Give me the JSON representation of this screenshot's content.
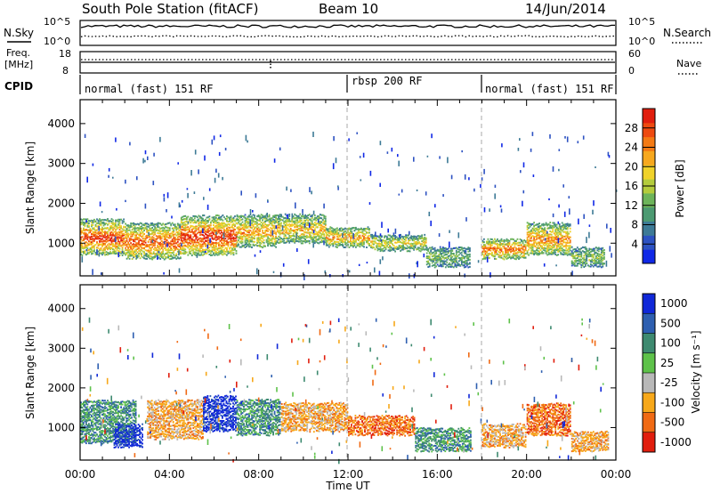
{
  "header": {
    "station": "South Pole Station (fitACF)",
    "beam": "Beam 10",
    "date": "14/Jun/2014"
  },
  "noise_panel": {
    "left_label": "N.Sky",
    "right_label": "N.Search",
    "left_ticks": [
      "10^5",
      "10^0"
    ],
    "right_ticks": [
      "10^5",
      "10^0"
    ]
  },
  "freq_panel": {
    "left_label_1": "Freq.",
    "left_label_2": "[MHz]",
    "right_label": "Nave",
    "left_ticks": [
      "18",
      "8"
    ],
    "right_ticks": [
      "60",
      "0"
    ]
  },
  "cpid": {
    "label": "CPID",
    "segments": [
      {
        "start": 0,
        "end": 12,
        "text": "normal (fast) 151 RF"
      },
      {
        "start": 12,
        "end": 18,
        "text": "rbsp 200 RF"
      },
      {
        "start": 18,
        "end": 24,
        "text": "normal (fast) 151 RF"
      }
    ]
  },
  "chart_data": [
    {
      "type": "heatmap",
      "name": "power",
      "ylabel": "Slant Range [km]",
      "xlim": [
        0,
        24
      ],
      "ylim": [
        180,
        4600
      ],
      "y_ticks": [
        1000,
        2000,
        3000,
        4000
      ],
      "colorbar": {
        "label": "Power [dB]",
        "range": [
          0,
          32
        ],
        "ticks": [
          "4",
          "8",
          "12",
          "16",
          "20",
          "24",
          "28"
        ],
        "colors": [
          "#1028e6",
          "#2d52c2",
          "#3d7a96",
          "#4c9a72",
          "#6db45a",
          "#b4cc3c",
          "#f0d22a",
          "#f7a81e",
          "#f47a14",
          "#ee4a10",
          "#e11e0e"
        ]
      },
      "blobs": [
        {
          "x0": 0.0,
          "x1": 2.0,
          "y0": 700,
          "y1": 1600,
          "level": 0.8
        },
        {
          "x0": 2.0,
          "x1": 4.5,
          "y0": 600,
          "y1": 1500,
          "level": 0.75
        },
        {
          "x0": 4.5,
          "x1": 7.0,
          "y0": 700,
          "y1": 1700,
          "level": 0.85
        },
        {
          "x0": 7.0,
          "x1": 8.8,
          "y0": 900,
          "y1": 1700,
          "level": 0.6
        },
        {
          "x0": 8.8,
          "x1": 11.0,
          "y0": 1000,
          "y1": 1700,
          "level": 0.55
        },
        {
          "x0": 11.0,
          "x1": 13.0,
          "y0": 900,
          "y1": 1400,
          "level": 0.6
        },
        {
          "x0": 13.0,
          "x1": 15.5,
          "y0": 800,
          "y1": 1200,
          "level": 0.45
        },
        {
          "x0": 15.5,
          "x1": 17.5,
          "y0": 400,
          "y1": 900,
          "level": 0.25
        },
        {
          "x0": 18.0,
          "x1": 20.0,
          "y0": 600,
          "y1": 1100,
          "level": 0.7
        },
        {
          "x0": 20.0,
          "x1": 22.0,
          "y0": 700,
          "y1": 1500,
          "level": 0.65
        },
        {
          "x0": 22.0,
          "x1": 23.5,
          "y0": 400,
          "y1": 900,
          "level": 0.3
        }
      ]
    },
    {
      "type": "heatmap",
      "name": "velocity",
      "ylabel": "Slant Range [km]",
      "xlabel": "Time UT",
      "xlim": [
        0,
        24
      ],
      "ylim": [
        180,
        4600
      ],
      "x_ticks": [
        "00:00",
        "04:00",
        "08:00",
        "12:00",
        "16:00",
        "20:00",
        "00:00"
      ],
      "y_ticks": [
        1000,
        2000,
        3000,
        4000
      ],
      "colorbar": {
        "label": "Velocity [m s⁻¹]",
        "ticks": [
          "1000",
          "500",
          "100",
          "25",
          "-25",
          "-100",
          "-500",
          "-1000"
        ],
        "colors": [
          "#1028d8",
          "#2e5fb0",
          "#3e8a70",
          "#5ec24a",
          "#b8b8b8",
          "#f7a81a",
          "#f06a14",
          "#e11e0e"
        ]
      },
      "blobs": [
        {
          "x0": 0.0,
          "x1": 2.5,
          "y0": 600,
          "y1": 1700,
          "band": 2
        },
        {
          "x0": 1.5,
          "x1": 2.8,
          "y0": 500,
          "y1": 1100,
          "band": 0
        },
        {
          "x0": 3.0,
          "x1": 5.5,
          "y0": 700,
          "y1": 1700,
          "band": 5
        },
        {
          "x0": 5.5,
          "x1": 7.0,
          "y0": 900,
          "y1": 1800,
          "band": 0
        },
        {
          "x0": 7.0,
          "x1": 9.0,
          "y0": 800,
          "y1": 1700,
          "band": 2
        },
        {
          "x0": 9.0,
          "x1": 12.0,
          "y0": 900,
          "y1": 1600,
          "band": 5
        },
        {
          "x0": 12.0,
          "x1": 15.0,
          "y0": 800,
          "y1": 1300,
          "band": 6
        },
        {
          "x0": 15.0,
          "x1": 17.5,
          "y0": 400,
          "y1": 1000,
          "band": 2
        },
        {
          "x0": 18.0,
          "x1": 20.0,
          "y0": 500,
          "y1": 1100,
          "band": 5
        },
        {
          "x0": 20.0,
          "x1": 22.0,
          "y0": 800,
          "y1": 1600,
          "band": 6
        },
        {
          "x0": 22.0,
          "x1": 23.7,
          "y0": 400,
          "y1": 900,
          "band": 5
        }
      ]
    }
  ]
}
